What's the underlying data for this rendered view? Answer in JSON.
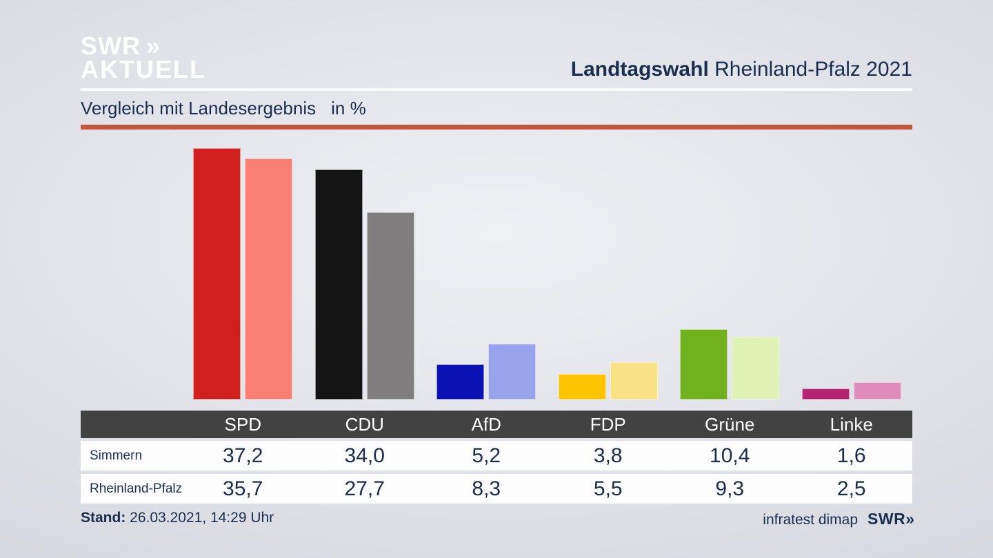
{
  "header": {
    "logo": {
      "line1": "SWR",
      "chevrons": "»",
      "line2": "AKTUELL"
    },
    "title_bold": "Landtagswahl",
    "title_rest": "Rheinland-Pfalz 2021"
  },
  "subtitle": {
    "text": "Vergleich mit Landesergebnis",
    "unit": "in %"
  },
  "accent_color": "#c3563f",
  "chart_data": {
    "type": "bar",
    "categories": [
      "SPD",
      "CDU",
      "AfD",
      "FDP",
      "Grüne",
      "Linke"
    ],
    "series": [
      {
        "name": "Simmern",
        "values": [
          37.2,
          34.0,
          5.2,
          3.8,
          10.4,
          1.6
        ],
        "colors": [
          "#d11e1e",
          "#141414",
          "#0b12b5",
          "#fdc500",
          "#6fb21d",
          "#b62371"
        ]
      },
      {
        "name": "Rheinland-Pfalz",
        "values": [
          35.7,
          27.7,
          8.3,
          5.5,
          9.3,
          2.5
        ],
        "colors": [
          "#f97e73",
          "#7f7d7d",
          "#99a3eb",
          "#fbe186",
          "#def2b5",
          "#df8cba"
        ]
      }
    ],
    "ylabel": "in %",
    "ylim": [
      0,
      38
    ],
    "grid": false,
    "legend_position": "table-rows"
  },
  "table": {
    "header_bg": "#434243",
    "columns": [
      "SPD",
      "CDU",
      "AfD",
      "FDP",
      "Grüne",
      "Linke"
    ],
    "rows": [
      {
        "label": "Simmern",
        "values": [
          "37,2",
          "34,0",
          "5,2",
          "3,8",
          "10,4",
          "1,6"
        ]
      },
      {
        "label": "Rheinland-Pfalz",
        "values": [
          "35,7",
          "27,7",
          "8,3",
          "5,5",
          "9,3",
          "2,5"
        ]
      }
    ]
  },
  "footer": {
    "stand_label": "Stand:",
    "stand_value": "26.03.2021, 14:29 Uhr",
    "source": "infratest dimap",
    "brand": "SWR",
    "brand_chevrons": "»"
  }
}
